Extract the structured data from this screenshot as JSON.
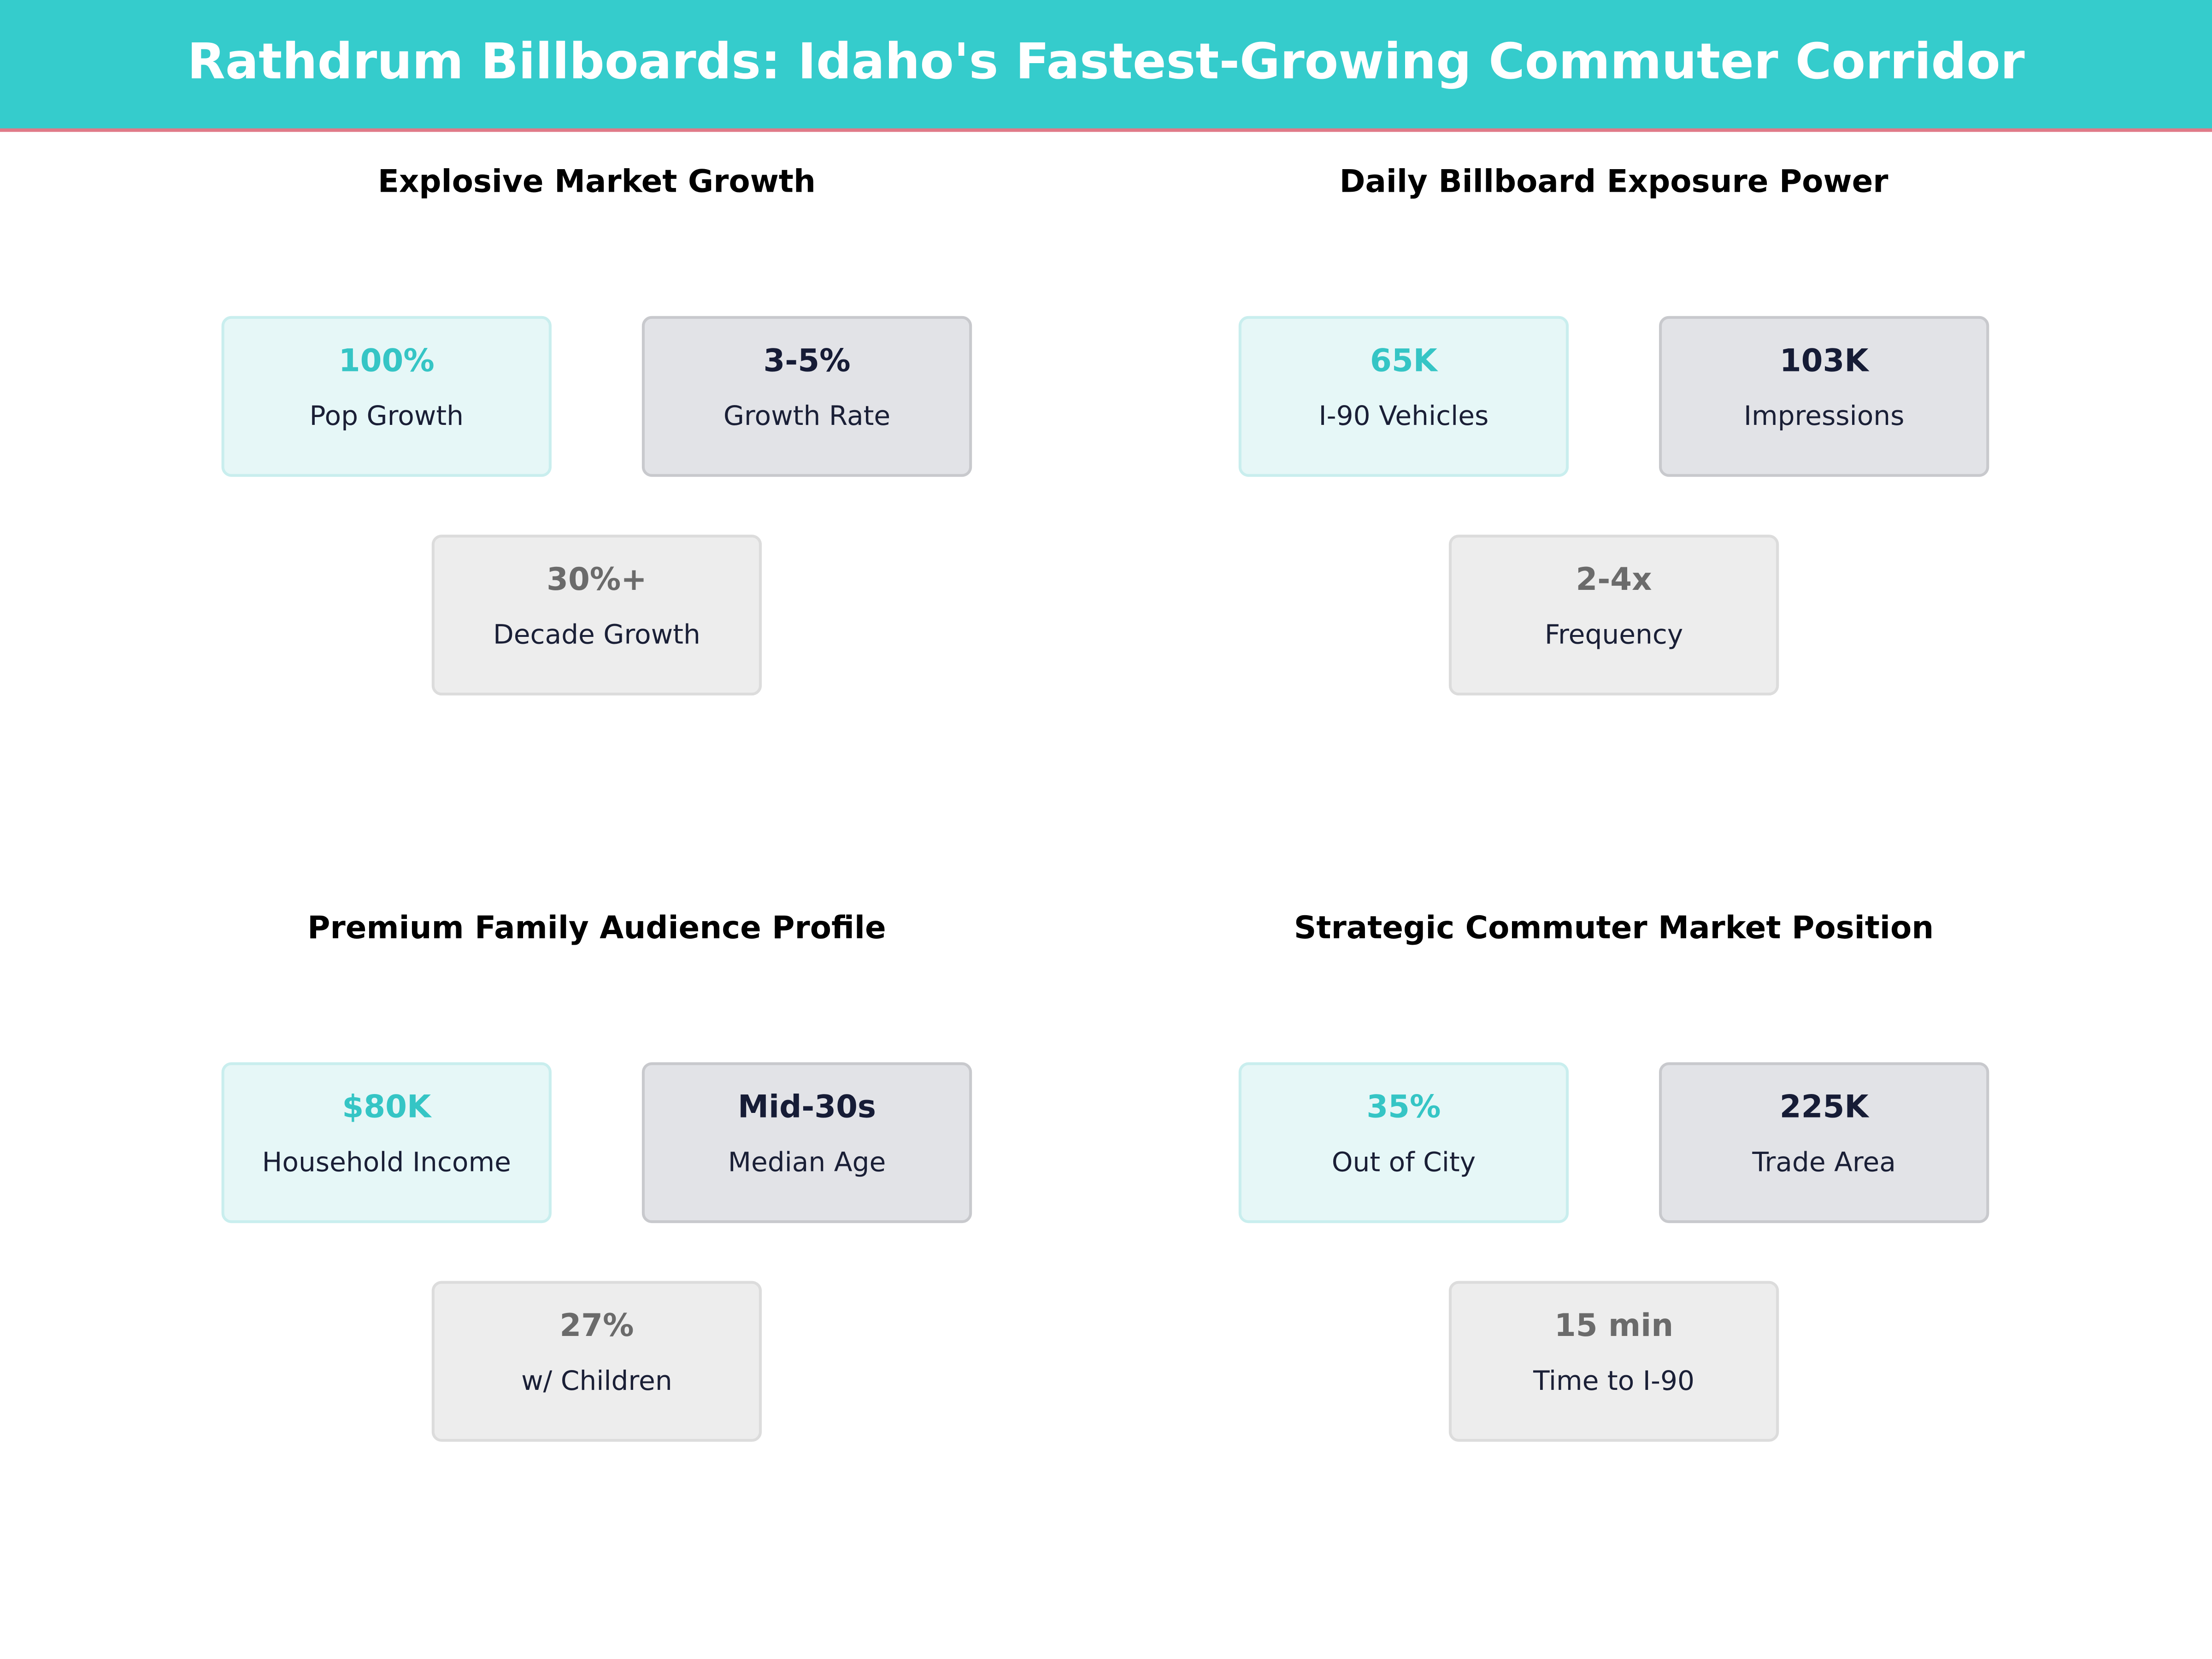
{
  "header": {
    "title": "Rathdrum Billboards: Idaho's Fastest-Growing Commuter Corridor"
  },
  "panels": [
    {
      "title": "Explosive Market Growth",
      "cards": [
        {
          "value": "100%",
          "label": "Pop Growth"
        },
        {
          "value": "3-5%",
          "label": "Growth Rate"
        },
        {
          "value": "30%+",
          "label": "Decade Growth"
        }
      ]
    },
    {
      "title": "Daily Billboard Exposure Power",
      "cards": [
        {
          "value": "65K",
          "label": "I-90 Vehicles"
        },
        {
          "value": "103K",
          "label": "Impressions"
        },
        {
          "value": "2-4x",
          "label": "Frequency"
        }
      ]
    },
    {
      "title": "Premium Family Audience Profile",
      "cards": [
        {
          "value": "$80K",
          "label": "Household Income"
        },
        {
          "value": "Mid-30s",
          "label": "Median Age"
        },
        {
          "value": "27%",
          "label": "w/ Children"
        }
      ]
    },
    {
      "title": "Strategic Commuter Market Position",
      "cards": [
        {
          "value": "35%",
          "label": "Out of City"
        },
        {
          "value": "225K",
          "label": "Trade Area"
        },
        {
          "value": "15 min",
          "label": "Time to I-90"
        }
      ]
    }
  ]
}
